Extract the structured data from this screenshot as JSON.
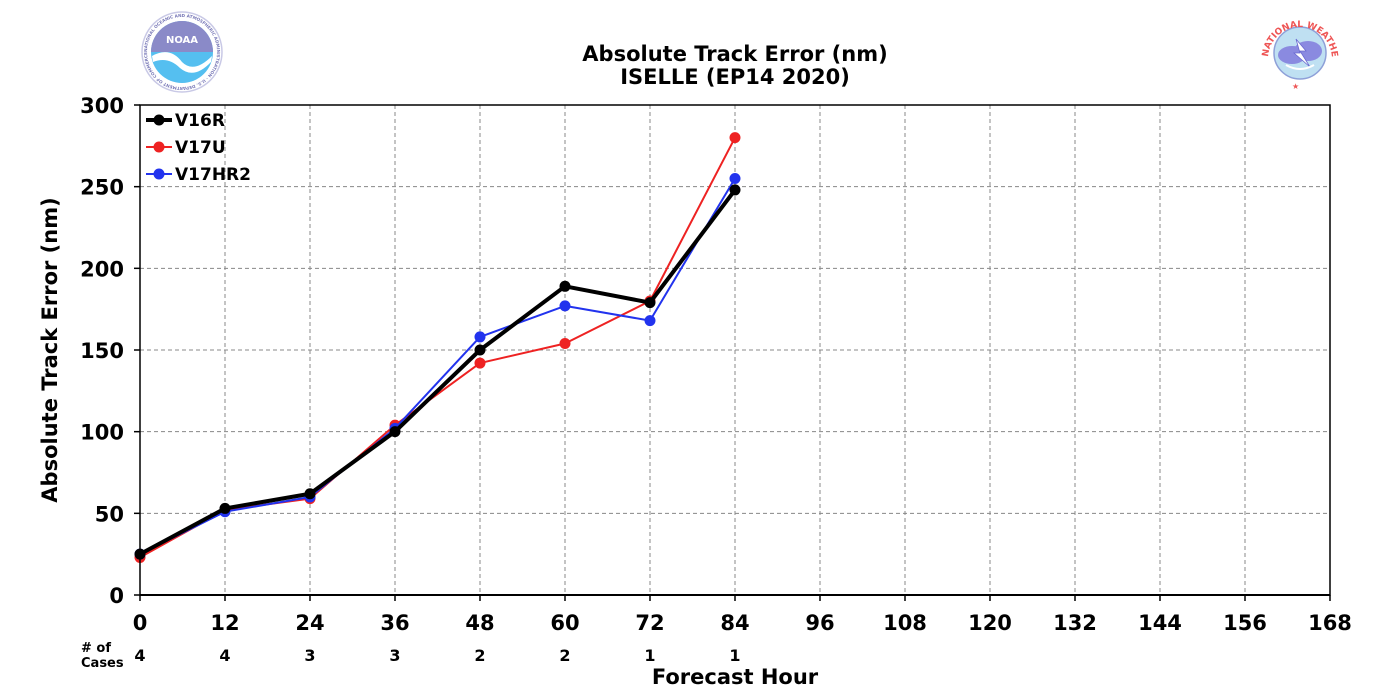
{
  "logos": {
    "left": {
      "name": "NOAA",
      "text": "NOAA",
      "ring_text": "NATIONAL OCEANIC AND ATMOSPHERIC ADMINISTRATION · U.S. DEPARTMENT OF COMMERCE"
    },
    "right": {
      "name": "National Weather Service",
      "ring_text": "NATIONAL WEATHER SERVICE"
    }
  },
  "chart_data": {
    "type": "line",
    "title": "Absolute Track Error (nm)",
    "subtitle": "ISELLE (EP14 2020)",
    "xlabel": "Forecast Hour",
    "ylabel": "Absolute Track Error (nm)",
    "xlim": [
      0,
      168
    ],
    "ylim": [
      0,
      300
    ],
    "x_ticks": [
      0,
      12,
      24,
      36,
      48,
      60,
      72,
      84,
      96,
      108,
      120,
      132,
      144,
      156,
      168
    ],
    "y_ticks": [
      0,
      50,
      100,
      150,
      200,
      250,
      300
    ],
    "grid": true,
    "legend_position": "top-left",
    "cases_label": "# of\nCases",
    "cases_x": [
      0,
      12,
      24,
      36,
      48,
      60,
      72,
      84
    ],
    "cases": [
      4,
      4,
      3,
      3,
      2,
      2,
      1,
      1
    ],
    "series": [
      {
        "name": "V16R",
        "color": "#000000",
        "bold": true,
        "x": [
          0,
          12,
          24,
          36,
          48,
          60,
          72,
          84
        ],
        "values": [
          25,
          53,
          62,
          100,
          150,
          189,
          179,
          248
        ]
      },
      {
        "name": "V17U",
        "color": "#ee2222",
        "bold": false,
        "x": [
          0,
          12,
          24,
          36,
          48,
          60,
          72,
          84
        ],
        "values": [
          23,
          52,
          59,
          104,
          142,
          154,
          180,
          280
        ]
      },
      {
        "name": "V17HR2",
        "color": "#2233ee",
        "bold": false,
        "x": [
          0,
          12,
          24,
          36,
          48,
          60,
          72,
          84
        ],
        "values": [
          25,
          51,
          60,
          102,
          158,
          177,
          168,
          255
        ]
      }
    ]
  }
}
